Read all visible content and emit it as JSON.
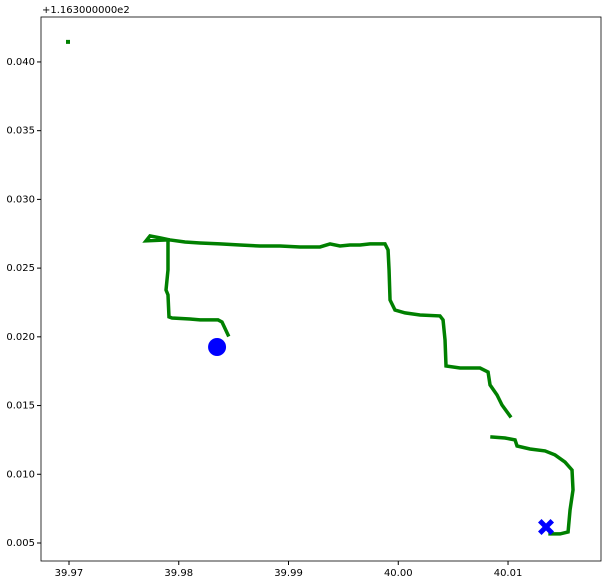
{
  "chart_data": {
    "type": "scatter",
    "offset_text": "+1.163000000e2",
    "xlim": [
      39.96745,
      40.01847
    ],
    "ylim": [
      0.00369,
      0.04327
    ],
    "xticks": [
      39.97,
      39.98,
      39.99,
      {
        "value": 40.0,
        "label": "40.00"
      },
      40.01
    ],
    "yticks": [
      0.005,
      {
        "value": 0.01,
        "label": "0.010"
      },
      0.015,
      {
        "value": 0.02,
        "label": "0.020"
      },
      0.025,
      {
        "value": 0.03,
        "label": "0.030"
      },
      0.035,
      {
        "value": 0.04,
        "label": "0.040"
      }
    ],
    "grid": false,
    "series": [
      {
        "color": "#008000",
        "marker": "line",
        "x": [
          39.98449,
          39.98394,
          39.98358,
          39.98194,
          39.98102,
          39.97939,
          39.97911,
          39.97902,
          39.97884,
          39.97902,
          39.97902,
          39.97702,
          39.97738,
          39.97829,
          39.9792,
          39.98057,
          39.98194,
          39.98376,
          39.98558,
          39.9874,
          39.98923,
          39.99105,
          39.99287,
          39.99378,
          39.99469,
          39.9956,
          39.99652,
          39.99743,
          39.99879,
          39.99907,
          39.99916,
          39.99925,
          39.9997,
          40.00062,
          40.00198,
          40.0038,
          40.00408,
          40.00426,
          40.00435,
          40.00563,
          40.00745,
          40.00818,
          40.00836,
          40.009,
          40.00945,
          40.01018,
          null,
          40.00854,
          40.00973,
          40.01064,
          40.01082,
          40.012,
          40.01337,
          40.01428,
          40.01519,
          40.01583,
          40.01592,
          40.01565,
          40.01547,
          40.01474,
          40.01383
        ],
        "values": [
          0.02014,
          0.02108,
          0.02123,
          0.02123,
          0.0213,
          0.02137,
          0.02145,
          0.02305,
          0.02341,
          0.02487,
          0.02705,
          0.02698,
          0.02734,
          0.0272,
          0.02705,
          0.0269,
          0.02683,
          0.02676,
          0.02668,
          0.02661,
          0.02661,
          0.02654,
          0.02654,
          0.02676,
          0.02661,
          0.02668,
          0.02668,
          0.02676,
          0.02676,
          0.02632,
          0.02487,
          0.02268,
          0.02195,
          0.02174,
          0.02159,
          0.02152,
          0.02123,
          0.01977,
          0.01788,
          0.01773,
          0.01773,
          0.01744,
          0.0165,
          0.01577,
          0.01504,
          0.01424,
          null,
          0.01271,
          0.01264,
          0.0125,
          0.01206,
          0.01184,
          0.0117,
          0.01141,
          0.01089,
          0.01031,
          0.00886,
          0.0074,
          0.0058,
          0.00566,
          0.00566
        ]
      },
      {
        "color": "#008000",
        "marker": "square",
        "x": [
          39.96991
        ],
        "values": [
          0.04146
        ]
      },
      {
        "color": "#0000ff",
        "marker": "circle",
        "x": [
          39.98349
        ],
        "values": [
          0.01926
        ]
      },
      {
        "color": "#0000ff",
        "marker": "cross",
        "x": [
          40.01346
        ],
        "values": [
          0.00616
        ]
      }
    ]
  }
}
